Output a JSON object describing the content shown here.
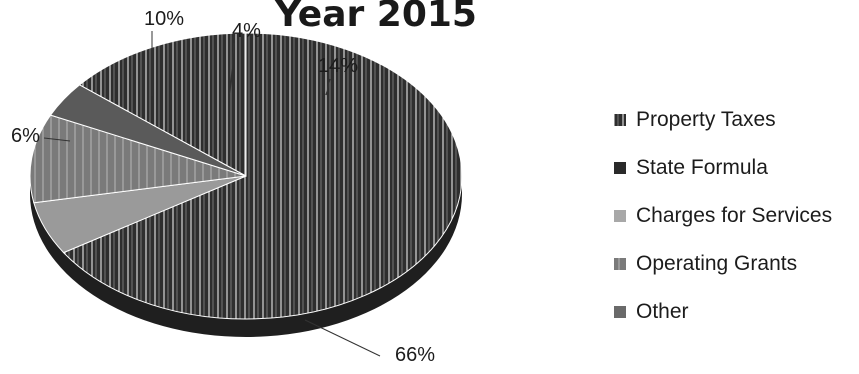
{
  "chart_data": {
    "type": "pie",
    "title": "Year 2015",
    "categories": [
      "Property Taxes",
      "State Formula",
      "Charges for Services",
      "Operating Grants",
      "Other"
    ],
    "values": [
      66,
      14,
      6,
      10,
      4
    ],
    "data_labels": [
      "66%",
      "14%",
      "6%",
      "10%",
      "4%"
    ],
    "legend_position": "right",
    "three_d": true,
    "colors": [
      "#2e2e2e",
      "#3a3a3a",
      "#9a9a9a",
      "#7a7a7a",
      "#5a5a5a"
    ]
  }
}
